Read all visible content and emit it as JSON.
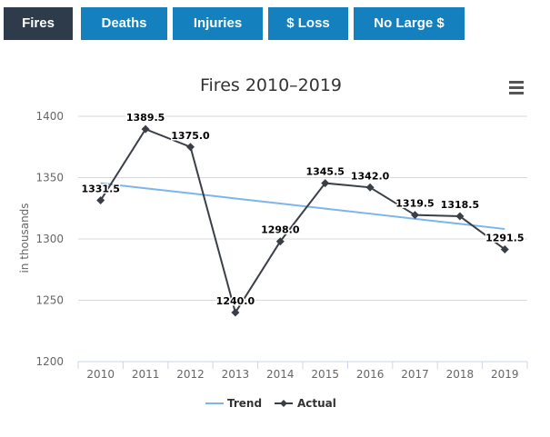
{
  "tabs": [
    {
      "label": "Fires",
      "active": true
    },
    {
      "label": "Deaths",
      "active": false
    },
    {
      "label": "Injuries",
      "active": false
    },
    {
      "label": "$ Loss",
      "active": false
    },
    {
      "label": "No Large $",
      "active": false
    }
  ],
  "colors": {
    "tab_active": "#2d3b4a",
    "tab_inactive": "#1480bd",
    "actual_line": "#3a3f47",
    "trend_line": "#7cb5ec"
  },
  "menu_icon": "hamburger-menu-icon",
  "chart_data": {
    "type": "line",
    "title": "Fires 2010–2019",
    "ylabel": "in thousands",
    "xlabel": "",
    "categories": [
      "2010",
      "2011",
      "2012",
      "2013",
      "2014",
      "2015",
      "2016",
      "2017",
      "2018",
      "2019"
    ],
    "ylim": [
      1200,
      1400
    ],
    "yticks": [
      1200,
      1250,
      1300,
      1350,
      1400
    ],
    "grid": true,
    "legend_position": "bottom-center",
    "series": [
      {
        "name": "Trend",
        "values": [
          1345.5,
          1341.3,
          1337.2,
          1333.0,
          1328.9,
          1324.7,
          1320.6,
          1316.4,
          1312.3,
          1308.1
        ],
        "markers": false
      },
      {
        "name": "Actual",
        "values": [
          1331.5,
          1389.5,
          1375.0,
          1240.0,
          1298.0,
          1345.5,
          1342.0,
          1319.5,
          1318.5,
          1291.5
        ],
        "markers": true,
        "labels": [
          "1331.5",
          "1389.5",
          "1375.0",
          "1240.0",
          "1298.0",
          "1345.5",
          "1342.0",
          "1319.5",
          "1318.5",
          "1291.5"
        ]
      }
    ]
  }
}
